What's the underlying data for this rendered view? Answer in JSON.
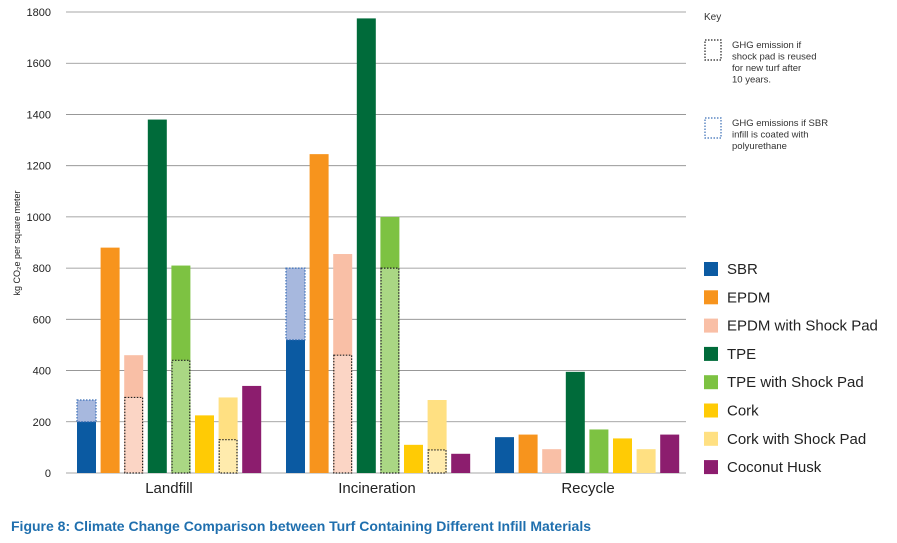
{
  "chart_data": {
    "type": "bar",
    "title": "",
    "xlabel": "",
    "ylabel": "kg CO₂e per square meter",
    "ylim": [
      0,
      1800
    ],
    "yticks": [
      0,
      200,
      400,
      600,
      800,
      1000,
      1200,
      1400,
      1600,
      1800
    ],
    "grid": true,
    "categories": [
      "Landfill",
      "Incineration",
      "Recycle"
    ],
    "series": [
      {
        "name": "SBR",
        "color": "#0b5aa2",
        "values": [
          200,
          520,
          140
        ],
        "coated_total": [
          285,
          800,
          null
        ]
      },
      {
        "name": "EPDM",
        "color": "#f7941d",
        "values": [
          880,
          1245,
          150
        ]
      },
      {
        "name": "EPDM with Shock Pad",
        "color": "#f9bfa6",
        "values": [
          460,
          855,
          93
        ],
        "reused_total": [
          295,
          460,
          null
        ]
      },
      {
        "name": "TPE",
        "color": "#006b3a",
        "values": [
          1380,
          1775,
          395
        ]
      },
      {
        "name": "TPE with Shock Pad",
        "color": "#7dc242",
        "values": [
          810,
          1000,
          170
        ],
        "reused_total": [
          440,
          800,
          null
        ]
      },
      {
        "name": "Cork",
        "color": "#ffcb05",
        "values": [
          225,
          110,
          135
        ]
      },
      {
        "name": "Cork with Shock Pad",
        "color": "#ffe082",
        "values": [
          295,
          285,
          93
        ],
        "reused_total": [
          130,
          90,
          null
        ]
      },
      {
        "name": "Coconut Husk",
        "color": "#8c1d6e",
        "values": [
          340,
          75,
          150
        ]
      }
    ],
    "key": {
      "title": "Key",
      "items": [
        {
          "pattern": "black-dotted",
          "lines": [
            "GHG emission if",
            "shock pad is reused",
            "for new turf after",
            "10 years."
          ]
        },
        {
          "pattern": "blue-dotted",
          "lines": [
            "GHG emissions if SBR",
            "infill is coated with",
            "polyurethane"
          ]
        }
      ]
    },
    "legend_position": "right"
  },
  "caption": "Figure 8: Climate Change Comparison between Turf Containing Different Infill Materials"
}
